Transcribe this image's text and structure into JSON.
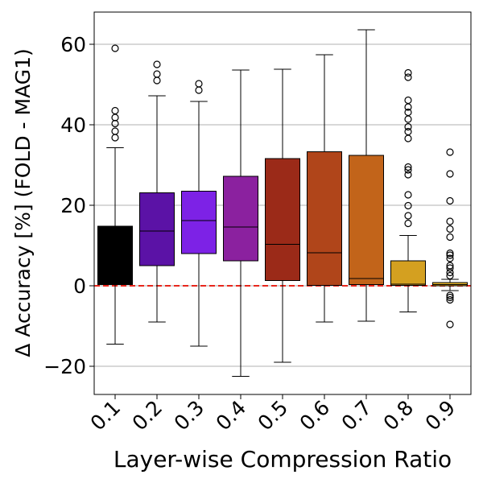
{
  "chart_data": {
    "type": "box",
    "xlabel": "Layer-wise Compression Ratio",
    "ylabel": "Δ Accuracy [%] (FOLD - MAG1)",
    "ylim": [
      -27,
      68
    ],
    "yticks": [
      -20,
      0,
      20,
      40,
      60
    ],
    "ytick_labels": [
      "−20",
      "0",
      "20",
      "40",
      "60"
    ],
    "grid": "horizontal",
    "reference_line": {
      "y": 0,
      "color": "#e8261c",
      "style": "dashed"
    },
    "categories": [
      "0.1",
      "0.2",
      "0.3",
      "0.4",
      "0.5",
      "0.6",
      "0.7",
      "0.8",
      "0.9"
    ],
    "boxes": [
      {
        "label": "0.1",
        "color": "#000000",
        "whisker_low": -14.5,
        "q1": 0.3,
        "median": 0.5,
        "q3": 14.8,
        "whisker_high": 34.3,
        "outliers": [
          36.8,
          38.4,
          40.3,
          41.8,
          43.5,
          59.0
        ]
      },
      {
        "label": "0.2",
        "color": "#5b12a6",
        "whisker_low": -9.0,
        "q1": 5.0,
        "median": 13.6,
        "q3": 23.1,
        "whisker_high": 47.2,
        "outliers": [
          51.0,
          52.6,
          55.0
        ]
      },
      {
        "label": "0.3",
        "color": "#7d22e6",
        "whisker_low": -15.0,
        "q1": 8.0,
        "median": 16.2,
        "q3": 23.5,
        "whisker_high": 45.8,
        "outliers": [
          48.6,
          50.2
        ]
      },
      {
        "label": "0.4",
        "color": "#8b219f",
        "whisker_low": -22.5,
        "q1": 6.2,
        "median": 14.6,
        "q3": 27.2,
        "whisker_high": 53.6,
        "outliers": []
      },
      {
        "label": "0.5",
        "color": "#9b2a18",
        "whisker_low": -19.0,
        "q1": 1.3,
        "median": 10.3,
        "q3": 31.6,
        "whisker_high": 53.8,
        "outliers": []
      },
      {
        "label": "0.6",
        "color": "#b0451a",
        "whisker_low": -9.0,
        "q1": 0.1,
        "median": 8.2,
        "q3": 33.3,
        "whisker_high": 57.4,
        "outliers": []
      },
      {
        "label": "0.7",
        "color": "#c2641a",
        "whisker_low": -8.8,
        "q1": 0.3,
        "median": 1.8,
        "q3": 32.4,
        "whisker_high": 63.6,
        "outliers": []
      },
      {
        "label": "0.8",
        "color": "#d4a020",
        "whisker_low": -6.5,
        "q1": 0.1,
        "median": 0.4,
        "q3": 6.2,
        "whisker_high": 12.5,
        "outliers": [
          15.5,
          17.4,
          19.9,
          22.6,
          27.6,
          28.8,
          29.5,
          36.6,
          38.3,
          39.5,
          41.4,
          43.1,
          44.4,
          46.1,
          51.8,
          52.9
        ]
      },
      {
        "label": "0.9",
        "color": "#e2b22a",
        "whisker_low": -1.2,
        "q1": 0.0,
        "median": 0.3,
        "q3": 0.8,
        "whisker_high": 1.6,
        "outliers": [
          -9.6,
          -3.5,
          -2.9,
          -2.4,
          2.5,
          3.3,
          4.4,
          5.0,
          6.8,
          7.6,
          8.1,
          12.1,
          14.1,
          16.0,
          21.1,
          27.8,
          33.2
        ]
      }
    ]
  }
}
